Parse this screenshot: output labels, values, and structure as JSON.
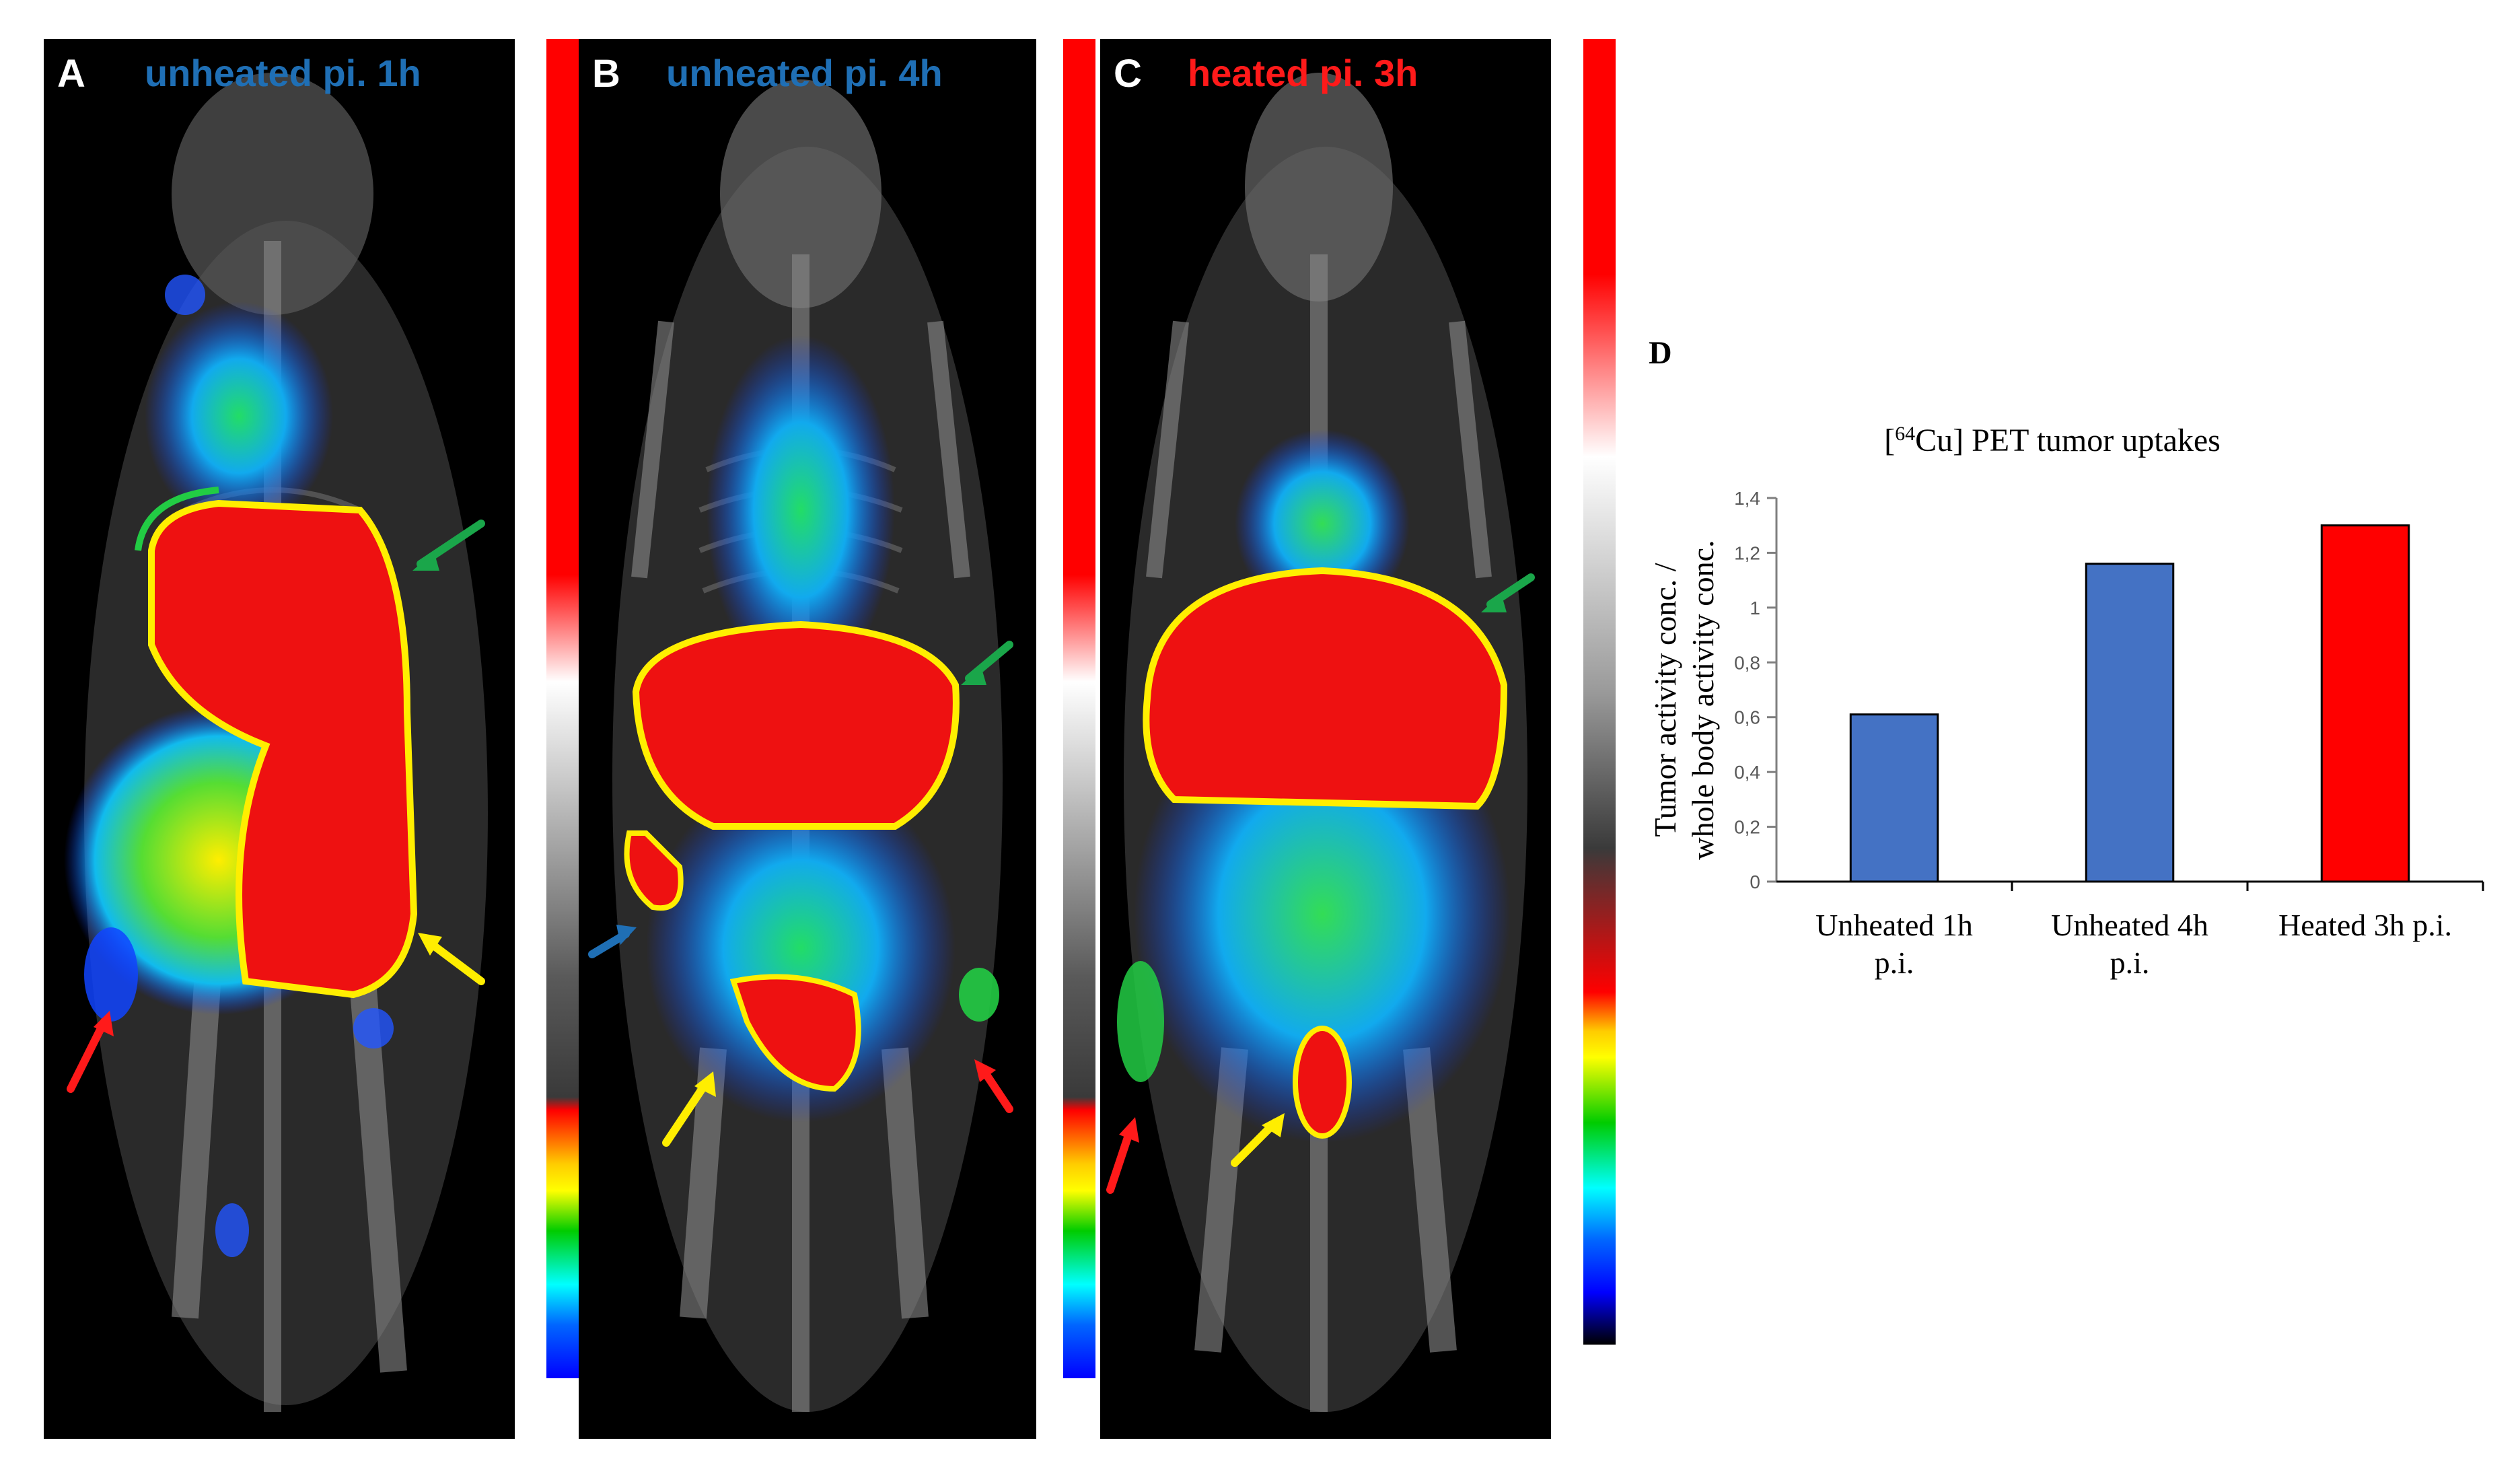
{
  "panels": [
    {
      "letter": "A",
      "title": "unheated pi. 1h",
      "title_color": "#1f6fb5"
    },
    {
      "letter": "B",
      "title": "unheated pi. 4h",
      "title_color": "#1f6fb5"
    },
    {
      "letter": "C",
      "title": "heated pi. 3h",
      "title_color": "#ff1a1a"
    }
  ],
  "arrow_colors": {
    "red": "#ff1a1a",
    "green": "#1aa64a",
    "yellow": "#ffee00",
    "blue": "#1f6fb5"
  },
  "chart_data": {
    "type": "bar",
    "panel_letter": "D",
    "title_prefix": "[",
    "title_superscript": "64",
    "title_suffix": "Cu] PET tumor uptakes",
    "ylabel": [
      "Tumor activity conc. /",
      "whole body activity conc."
    ],
    "xlabel": "",
    "categories": [
      [
        "Unheated 1h",
        "p.i."
      ],
      [
        "Unheated 4h",
        "p.i."
      ],
      [
        "Heated 3h p.i."
      ]
    ],
    "values": [
      0.61,
      1.16,
      1.3
    ],
    "bar_colors": [
      "#4472c4",
      "#4472c4",
      "#ff0000"
    ],
    "ylim": [
      0,
      1.4
    ],
    "yticks": [
      0,
      0.2,
      0.4,
      0.6,
      0.8,
      1,
      1.2,
      1.4
    ],
    "ytick_labels": [
      "0",
      "0,2",
      "0,4",
      "0,6",
      "0,8",
      "1",
      "1,2",
      "1,4"
    ],
    "grid": false,
    "legend": "none"
  }
}
